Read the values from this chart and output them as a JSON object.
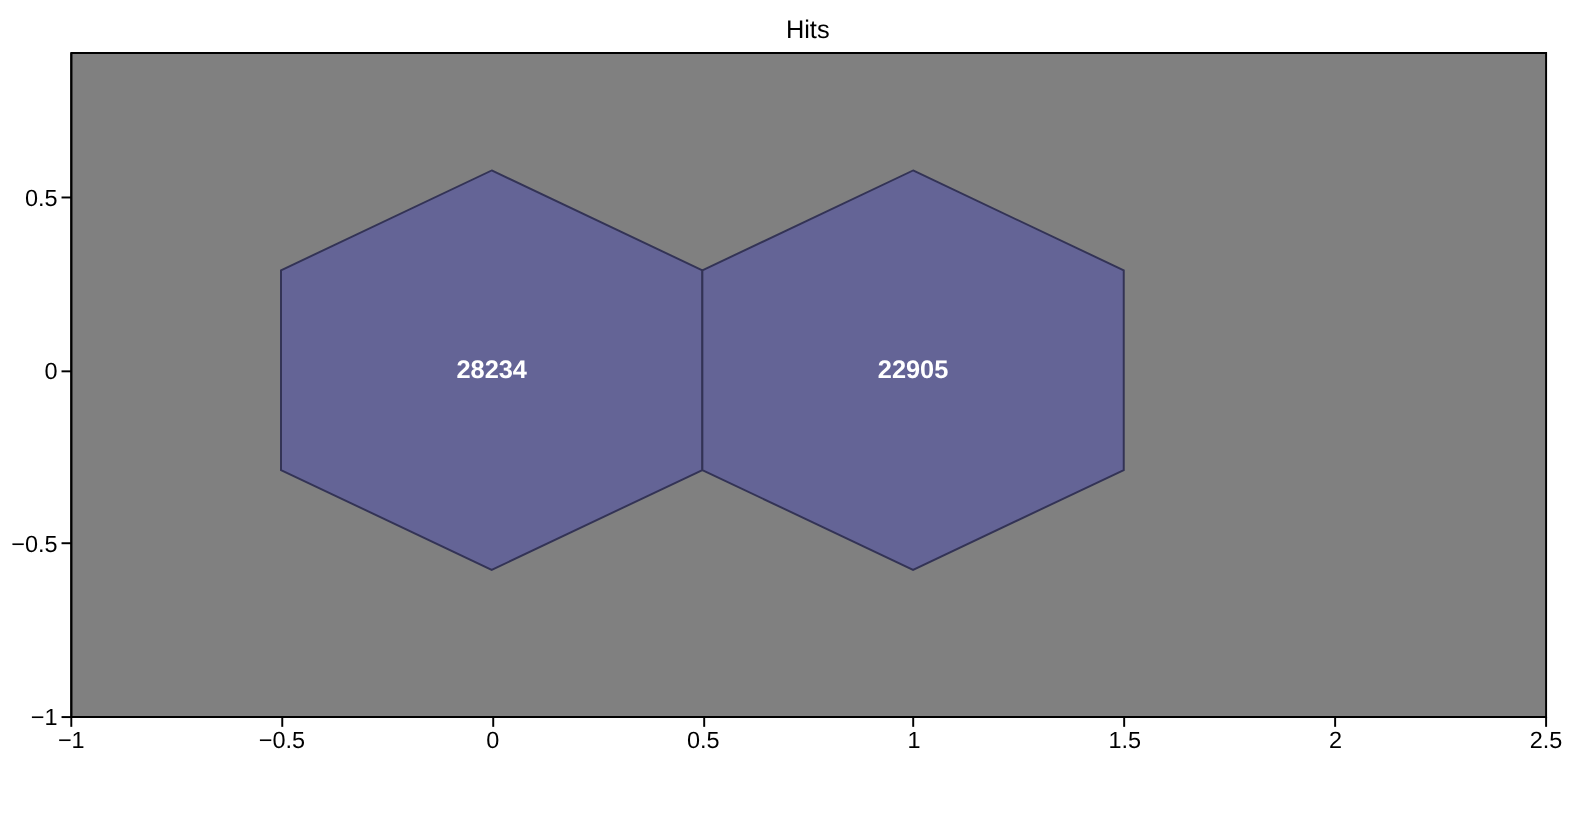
{
  "chart_data": {
    "type": "scatter",
    "title": "Hits",
    "x": [
      0,
      1
    ],
    "values": [
      0,
      0
    ],
    "color": "#646496",
    "annotations": [
      {
        "text": "28234",
        "x": 0,
        "y": 0
      },
      {
        "text": "22905",
        "x": 1,
        "y": 0
      }
    ],
    "xlim": [
      -1,
      2.5
    ],
    "ylim": [
      -1,
      0.92
    ],
    "xticks": [
      -1,
      -0.5,
      0,
      0.5,
      1,
      1.5,
      2,
      2.5
    ],
    "yticks": [
      -1,
      -0.5,
      0,
      0.5
    ],
    "grid": false
  }
}
